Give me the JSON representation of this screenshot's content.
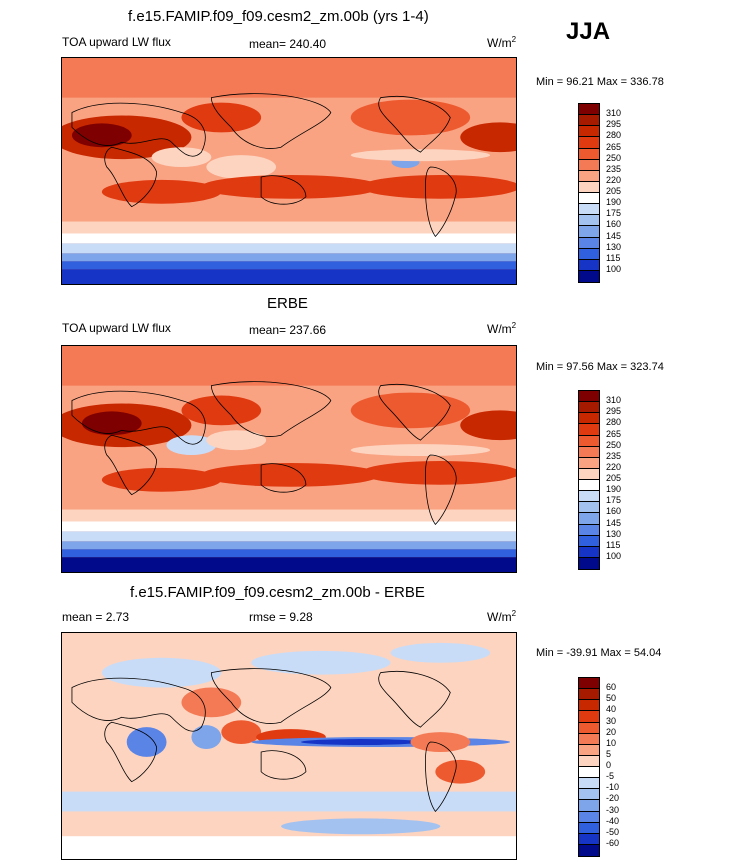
{
  "season": "JJA",
  "panels": [
    {
      "title": "f.e15.FAMIP.f09_f09.cesm2_zm.00b (yrs 1-4)",
      "variable": "TOA upward LW flux",
      "mean_text": "mean= 240.40",
      "units": "W/m",
      "units_sup": "2",
      "minmax": "Min =  96.21 Max = 336.78",
      "colorbar_labels": [
        "310",
        "295",
        "280",
        "265",
        "250",
        "235",
        "220",
        "205",
        "190",
        "175",
        "160",
        "145",
        "130",
        "115",
        "100"
      ],
      "colorbar_colors": [
        "#7f0000",
        "#a61a00",
        "#c82800",
        "#e03a10",
        "#ee5a30",
        "#f47a55",
        "#f9a383",
        "#fdd4c0",
        "#ffffff",
        "#c9dcf7",
        "#a4c2f0",
        "#7ea4ea",
        "#5a84e6",
        "#3060de",
        "#1635c6",
        "#000a8a"
      ]
    },
    {
      "title": "ERBE",
      "variable": "TOA upward LW flux",
      "mean_text": "mean= 237.66",
      "units": "W/m",
      "units_sup": "2",
      "minmax": "Min =  97.56 Max = 323.74",
      "colorbar_labels": [
        "310",
        "295",
        "280",
        "265",
        "250",
        "235",
        "220",
        "205",
        "190",
        "175",
        "160",
        "145",
        "130",
        "115",
        "100"
      ],
      "colorbar_colors": [
        "#7f0000",
        "#a61a00",
        "#c82800",
        "#e03a10",
        "#ee5a30",
        "#f47a55",
        "#f9a383",
        "#fdd4c0",
        "#ffffff",
        "#c9dcf7",
        "#a4c2f0",
        "#7ea4ea",
        "#5a84e6",
        "#3060de",
        "#1635c6",
        "#000a8a"
      ]
    },
    {
      "title": "f.e15.FAMIP.f09_f09.cesm2_zm.00b - ERBE",
      "variable": "mean =   2.73",
      "mean_text": "rmse =   9.28",
      "units": "W/m",
      "units_sup": "2",
      "minmax": "Min = -39.91 Max =  54.04",
      "colorbar_labels": [
        "60",
        "50",
        "40",
        "30",
        "20",
        "10",
        "5",
        "0",
        "-5",
        "-10",
        "-20",
        "-30",
        "-40",
        "-50",
        "-60"
      ],
      "colorbar_colors": [
        "#7f0000",
        "#a61a00",
        "#c82800",
        "#e03a10",
        "#ee5a30",
        "#f47a55",
        "#f9a383",
        "#fdd4c0",
        "#ffffff",
        "#c9dcf7",
        "#a4c2f0",
        "#7ea4ea",
        "#5a84e6",
        "#3060de",
        "#1635c6",
        "#000a8a"
      ]
    }
  ]
}
